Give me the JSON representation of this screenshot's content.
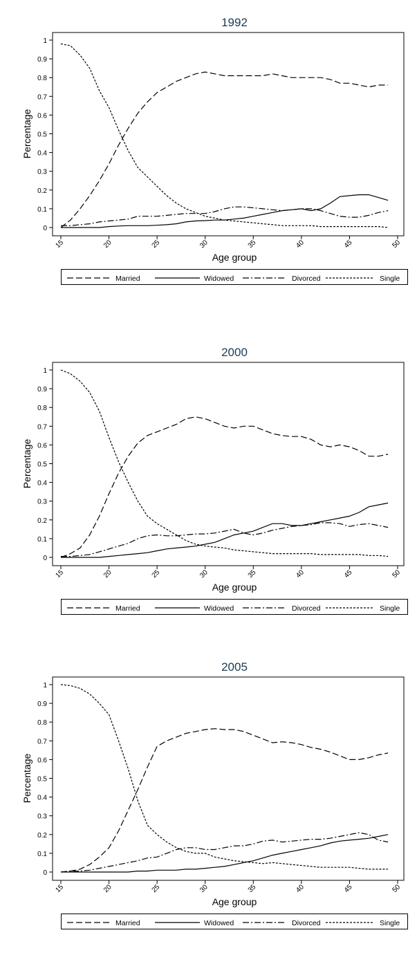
{
  "chart_data": [
    {
      "type": "line",
      "title": "1992",
      "xlabel": "Age group",
      "ylabel": "Percentage",
      "xlim": [
        15,
        50
      ],
      "ylim": [
        0,
        1
      ],
      "xticks": [
        "15",
        "20",
        "25",
        "30",
        "35",
        "40",
        "45",
        "50"
      ],
      "yticks": [
        "0",
        "0.1",
        "0.2",
        "0.3",
        "0.4",
        "0.5",
        "0.6",
        "0.7",
        "0.8",
        "0.9",
        "1"
      ],
      "grid": false,
      "legend_position": "bottom",
      "series": [
        {
          "name": "Married",
          "dash": "long-dash",
          "x": [
            15,
            16,
            17,
            18,
            19,
            20,
            21,
            22,
            23,
            24,
            25,
            26,
            27,
            28,
            29,
            30,
            31,
            32,
            33,
            34,
            35,
            36,
            37,
            38,
            39,
            40,
            41,
            42,
            43,
            44,
            45,
            46,
            47,
            48,
            49
          ],
          "y": [
            0.0,
            0.04,
            0.1,
            0.17,
            0.25,
            0.34,
            0.44,
            0.53,
            0.61,
            0.67,
            0.72,
            0.75,
            0.78,
            0.8,
            0.82,
            0.83,
            0.82,
            0.81,
            0.81,
            0.81,
            0.81,
            0.81,
            0.82,
            0.81,
            0.8,
            0.8,
            0.8,
            0.8,
            0.79,
            0.77,
            0.77,
            0.76,
            0.75,
            0.76,
            0.76
          ]
        },
        {
          "name": "Widowed",
          "dash": "solid",
          "x": [
            15,
            16,
            17,
            18,
            19,
            20,
            21,
            22,
            23,
            24,
            25,
            26,
            27,
            28,
            29,
            30,
            31,
            32,
            33,
            34,
            35,
            36,
            37,
            38,
            39,
            40,
            41,
            42,
            43,
            44,
            45,
            46,
            47,
            48,
            49
          ],
          "y": [
            0.0,
            0.0,
            0.0,
            0.0,
            0.0,
            0.005,
            0.008,
            0.01,
            0.01,
            0.01,
            0.012,
            0.015,
            0.02,
            0.03,
            0.035,
            0.037,
            0.04,
            0.04,
            0.045,
            0.05,
            0.06,
            0.07,
            0.08,
            0.09,
            0.095,
            0.1,
            0.09,
            0.1,
            0.13,
            0.165,
            0.17,
            0.175,
            0.175,
            0.16,
            0.145
          ]
        },
        {
          "name": "Divorced",
          "dash": "dash-dot",
          "x": [
            15,
            16,
            17,
            18,
            19,
            20,
            21,
            22,
            23,
            24,
            25,
            26,
            27,
            28,
            29,
            30,
            31,
            32,
            33,
            34,
            35,
            36,
            37,
            38,
            39,
            40,
            41,
            42,
            43,
            44,
            45,
            46,
            47,
            48,
            49
          ],
          "y": [
            0.01,
            0.01,
            0.015,
            0.02,
            0.03,
            0.035,
            0.04,
            0.045,
            0.06,
            0.06,
            0.06,
            0.065,
            0.07,
            0.075,
            0.075,
            0.075,
            0.085,
            0.1,
            0.11,
            0.11,
            0.105,
            0.1,
            0.095,
            0.09,
            0.095,
            0.1,
            0.1,
            0.09,
            0.075,
            0.06,
            0.055,
            0.055,
            0.065,
            0.08,
            0.09
          ]
        },
        {
          "name": "Single",
          "dash": "short-dash",
          "x": [
            15,
            16,
            17,
            18,
            19,
            20,
            21,
            22,
            23,
            24,
            25,
            26,
            27,
            28,
            29,
            30,
            31,
            32,
            33,
            34,
            35,
            36,
            37,
            38,
            39,
            40,
            41,
            42,
            43,
            44,
            45,
            46,
            47,
            48,
            49
          ],
          "y": [
            0.98,
            0.97,
            0.92,
            0.85,
            0.73,
            0.64,
            0.52,
            0.41,
            0.32,
            0.27,
            0.22,
            0.17,
            0.13,
            0.1,
            0.08,
            0.06,
            0.05,
            0.04,
            0.035,
            0.03,
            0.025,
            0.02,
            0.015,
            0.01,
            0.01,
            0.01,
            0.01,
            0.005,
            0.005,
            0.005,
            0.005,
            0.005,
            0.005,
            0.005,
            0.0
          ]
        }
      ]
    },
    {
      "type": "line",
      "title": "2000",
      "xlabel": "Age group",
      "ylabel": "Percentage",
      "xlim": [
        15,
        50
      ],
      "ylim": [
        0,
        1
      ],
      "xticks": [
        "15",
        "20",
        "25",
        "30",
        "35",
        "40",
        "45",
        "50"
      ],
      "yticks": [
        "0",
        "0.1",
        "0.2",
        "0.3",
        "0.4",
        "0.5",
        "0.6",
        "0.7",
        "0.8",
        "0.9",
        "1"
      ],
      "grid": false,
      "legend_position": "bottom",
      "series": [
        {
          "name": "Married",
          "dash": "long-dash",
          "x": [
            15,
            16,
            17,
            18,
            19,
            20,
            21,
            22,
            23,
            24,
            25,
            26,
            27,
            28,
            29,
            30,
            31,
            32,
            33,
            34,
            35,
            36,
            37,
            38,
            39,
            40,
            41,
            42,
            43,
            44,
            45,
            46,
            47,
            48,
            49
          ],
          "y": [
            0.0,
            0.02,
            0.05,
            0.12,
            0.22,
            0.34,
            0.45,
            0.54,
            0.61,
            0.65,
            0.67,
            0.69,
            0.71,
            0.74,
            0.75,
            0.74,
            0.72,
            0.7,
            0.69,
            0.7,
            0.7,
            0.68,
            0.66,
            0.65,
            0.645,
            0.645,
            0.63,
            0.6,
            0.59,
            0.6,
            0.59,
            0.57,
            0.54,
            0.54,
            0.55
          ]
        },
        {
          "name": "Widowed",
          "dash": "solid",
          "x": [
            15,
            16,
            17,
            18,
            19,
            20,
            21,
            22,
            23,
            24,
            25,
            26,
            27,
            28,
            29,
            30,
            31,
            32,
            33,
            34,
            35,
            36,
            37,
            38,
            39,
            40,
            41,
            42,
            43,
            44,
            45,
            46,
            47,
            48,
            49
          ],
          "y": [
            0.0,
            0.0,
            0.0,
            0.0,
            0.0,
            0.005,
            0.01,
            0.015,
            0.02,
            0.025,
            0.035,
            0.045,
            0.05,
            0.055,
            0.06,
            0.07,
            0.08,
            0.1,
            0.12,
            0.13,
            0.14,
            0.16,
            0.18,
            0.18,
            0.17,
            0.17,
            0.18,
            0.19,
            0.2,
            0.21,
            0.22,
            0.24,
            0.27,
            0.28,
            0.29
          ]
        },
        {
          "name": "Divorced",
          "dash": "dash-dot",
          "x": [
            15,
            16,
            17,
            18,
            19,
            20,
            21,
            22,
            23,
            24,
            25,
            26,
            27,
            28,
            29,
            30,
            31,
            32,
            33,
            34,
            35,
            36,
            37,
            38,
            39,
            40,
            41,
            42,
            43,
            44,
            45,
            46,
            47,
            48,
            49
          ],
          "y": [
            0.005,
            0.005,
            0.01,
            0.015,
            0.03,
            0.045,
            0.06,
            0.075,
            0.1,
            0.115,
            0.12,
            0.115,
            0.115,
            0.12,
            0.125,
            0.125,
            0.13,
            0.14,
            0.15,
            0.13,
            0.12,
            0.13,
            0.145,
            0.155,
            0.165,
            0.17,
            0.175,
            0.185,
            0.185,
            0.18,
            0.165,
            0.175,
            0.18,
            0.17,
            0.16
          ]
        },
        {
          "name": "Single",
          "dash": "short-dash",
          "x": [
            15,
            16,
            17,
            18,
            19,
            20,
            21,
            22,
            23,
            24,
            25,
            26,
            27,
            28,
            29,
            30,
            31,
            32,
            33,
            34,
            35,
            36,
            37,
            38,
            39,
            40,
            41,
            42,
            43,
            44,
            45,
            46,
            47,
            48,
            49
          ],
          "y": [
            1.0,
            0.98,
            0.94,
            0.88,
            0.78,
            0.64,
            0.51,
            0.4,
            0.3,
            0.22,
            0.18,
            0.15,
            0.12,
            0.09,
            0.07,
            0.06,
            0.055,
            0.05,
            0.04,
            0.035,
            0.03,
            0.025,
            0.02,
            0.02,
            0.02,
            0.02,
            0.02,
            0.015,
            0.015,
            0.015,
            0.015,
            0.015,
            0.01,
            0.01,
            0.005
          ]
        }
      ]
    },
    {
      "type": "line",
      "title": "2005",
      "xlabel": "Age group",
      "ylabel": "Percentage",
      "xlim": [
        15,
        50
      ],
      "ylim": [
        0,
        1
      ],
      "xticks": [
        "15",
        "20",
        "25",
        "30",
        "35",
        "40",
        "45",
        "50"
      ],
      "yticks": [
        "0",
        "0.1",
        "0.2",
        "0.3",
        "0.4",
        "0.5",
        "0.6",
        "0.7",
        "0.8",
        "0.9",
        "1"
      ],
      "grid": false,
      "legend_position": "bottom",
      "series": [
        {
          "name": "Married",
          "dash": "long-dash",
          "x": [
            15,
            16,
            17,
            18,
            19,
            20,
            21,
            22,
            23,
            24,
            25,
            26,
            27,
            28,
            29,
            30,
            31,
            32,
            33,
            34,
            35,
            36,
            37,
            38,
            39,
            40,
            41,
            42,
            43,
            44,
            45,
            46,
            47,
            48,
            49
          ],
          "y": [
            0.0,
            0.005,
            0.015,
            0.04,
            0.08,
            0.13,
            0.22,
            0.33,
            0.44,
            0.56,
            0.67,
            0.7,
            0.72,
            0.74,
            0.75,
            0.76,
            0.765,
            0.76,
            0.76,
            0.75,
            0.73,
            0.71,
            0.69,
            0.695,
            0.69,
            0.68,
            0.665,
            0.655,
            0.64,
            0.62,
            0.6,
            0.6,
            0.61,
            0.625,
            0.635
          ]
        },
        {
          "name": "Widowed",
          "dash": "solid",
          "x": [
            15,
            16,
            17,
            18,
            19,
            20,
            21,
            22,
            23,
            24,
            25,
            26,
            27,
            28,
            29,
            30,
            31,
            32,
            33,
            34,
            35,
            36,
            37,
            38,
            39,
            40,
            41,
            42,
            43,
            44,
            45,
            46,
            47,
            48,
            49
          ],
          "y": [
            0.0,
            0.0,
            0.0,
            0.0,
            0.0,
            0.0,
            0.0,
            0.0,
            0.005,
            0.005,
            0.01,
            0.01,
            0.01,
            0.015,
            0.015,
            0.02,
            0.025,
            0.03,
            0.04,
            0.05,
            0.06,
            0.075,
            0.09,
            0.1,
            0.11,
            0.12,
            0.13,
            0.14,
            0.155,
            0.165,
            0.17,
            0.175,
            0.18,
            0.19,
            0.2
          ]
        },
        {
          "name": "Divorced",
          "dash": "dash-dot",
          "x": [
            15,
            16,
            17,
            18,
            19,
            20,
            21,
            22,
            23,
            24,
            25,
            26,
            27,
            28,
            29,
            30,
            31,
            32,
            33,
            34,
            35,
            36,
            37,
            38,
            39,
            40,
            41,
            42,
            43,
            44,
            45,
            46,
            47,
            48,
            49
          ],
          "y": [
            0.0,
            0.005,
            0.005,
            0.01,
            0.02,
            0.03,
            0.04,
            0.05,
            0.06,
            0.075,
            0.08,
            0.1,
            0.12,
            0.13,
            0.13,
            0.12,
            0.12,
            0.13,
            0.14,
            0.14,
            0.15,
            0.165,
            0.17,
            0.16,
            0.165,
            0.17,
            0.175,
            0.175,
            0.18,
            0.19,
            0.2,
            0.21,
            0.2,
            0.17,
            0.16
          ]
        },
        {
          "name": "Single",
          "dash": "short-dash",
          "x": [
            15,
            16,
            17,
            18,
            19,
            20,
            21,
            22,
            23,
            24,
            25,
            26,
            27,
            28,
            29,
            30,
            31,
            32,
            33,
            34,
            35,
            36,
            37,
            38,
            39,
            40,
            41,
            42,
            43,
            44,
            45,
            46,
            47,
            48,
            49
          ],
          "y": [
            1.0,
            0.995,
            0.98,
            0.95,
            0.9,
            0.84,
            0.7,
            0.55,
            0.38,
            0.25,
            0.2,
            0.16,
            0.13,
            0.11,
            0.1,
            0.1,
            0.08,
            0.07,
            0.06,
            0.055,
            0.05,
            0.045,
            0.05,
            0.045,
            0.04,
            0.035,
            0.03,
            0.025,
            0.025,
            0.025,
            0.025,
            0.02,
            0.015,
            0.015,
            0.015
          ]
        }
      ]
    }
  ]
}
